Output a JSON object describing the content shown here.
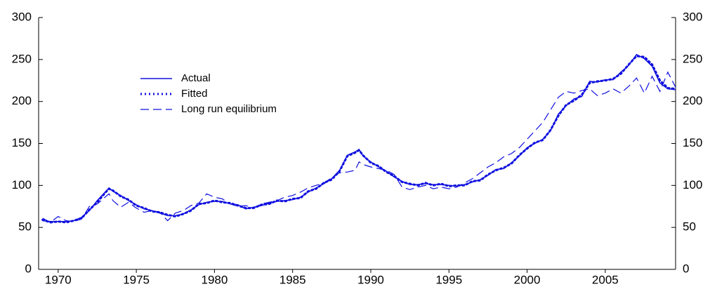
{
  "chart_data": {
    "type": "line",
    "x": [
      1969,
      1969.5,
      1970,
      1970.5,
      1971,
      1971.5,
      1972,
      1972.5,
      1973,
      1973.25,
      1973.5,
      1974,
      1974.5,
      1975,
      1975.5,
      1976,
      1976.5,
      1977,
      1977.5,
      1978,
      1978.5,
      1979,
      1979.5,
      1980,
      1980.5,
      1981,
      1981.5,
      1982,
      1982.5,
      1983,
      1983.5,
      1984,
      1984.5,
      1985,
      1985.5,
      1986,
      1986.5,
      1987,
      1987.5,
      1988,
      1988.5,
      1989,
      1989.25,
      1989.5,
      1990,
      1990.5,
      1991,
      1991.5,
      1992,
      1992.5,
      1993,
      1993.5,
      1994,
      1994.5,
      1995,
      1995.5,
      1996,
      1996.5,
      1997,
      1997.5,
      1998,
      1998.5,
      1999,
      1999.5,
      2000,
      2000.5,
      2001,
      2001.5,
      2002,
      2002.5,
      2003,
      2003.5,
      2004,
      2004.5,
      2005,
      2005.5,
      2006,
      2006.5,
      2007,
      2007.5,
      2008,
      2008.5,
      2009,
      2009.5
    ],
    "series": [
      {
        "name": "Actual",
        "color": "#1010e0",
        "dash": "solid",
        "values": [
          58,
          57,
          57,
          57,
          58,
          62,
          70,
          82,
          92,
          97,
          93,
          88,
          82,
          77,
          72,
          70,
          67,
          64,
          64,
          66,
          71,
          77,
          80,
          81,
          81,
          78,
          77,
          72,
          74,
          76,
          79,
          81,
          82,
          83,
          86,
          92,
          97,
          102,
          108,
          118,
          136,
          140,
          143,
          135,
          128,
          122,
          117,
          110,
          105,
          101,
          101,
          102,
          101,
          101,
          100,
          99,
          101,
          104,
          107,
          112,
          119,
          120,
          127,
          135,
          145,
          150,
          155,
          165,
          185,
          195,
          203,
          206,
          224,
          223,
          226,
          226,
          235,
          243,
          256,
          251,
          242,
          222,
          215,
          214
        ]
      },
      {
        "name": "Fitted",
        "color": "#1010e0",
        "dash": "dotted",
        "values": [
          59,
          56,
          57,
          56,
          58,
          61,
          71,
          80,
          91,
          96,
          94,
          87,
          83,
          76,
          73,
          69,
          68,
          65,
          63,
          66,
          70,
          78,
          79,
          82,
          80,
          79,
          76,
          73,
          73,
          77,
          78,
          82,
          81,
          84,
          85,
          93,
          96,
          103,
          107,
          117,
          135,
          139,
          142,
          136,
          127,
          123,
          116,
          111,
          104,
          102,
          100,
          103,
          100,
          102,
          99,
          100,
          100,
          105,
          106,
          113,
          118,
          121,
          126,
          136,
          144,
          151,
          154,
          166,
          183,
          196,
          201,
          208,
          222,
          224,
          225,
          227,
          233,
          244,
          254,
          253,
          244,
          225,
          216,
          215
        ]
      },
      {
        "name": "Long run equilibrium",
        "color": "#1010e0",
        "dash": "dashed",
        "values": [
          61,
          56,
          63,
          58,
          57,
          60,
          75,
          78,
          86,
          90,
          82,
          74,
          80,
          73,
          68,
          70,
          68,
          58,
          67,
          70,
          76,
          79,
          90,
          86,
          84,
          78,
          75,
          76,
          73,
          78,
          80,
          82,
          86,
          88,
          92,
          97,
          100,
          103,
          109,
          115,
          116,
          118,
          128,
          125,
          122,
          120,
          118,
          113,
          98,
          95,
          98,
          100,
          96,
          98,
          96,
          98,
          103,
          108,
          115,
          122,
          127,
          134,
          138,
          145,
          155,
          165,
          175,
          190,
          205,
          212,
          210,
          213,
          215,
          207,
          210,
          215,
          210,
          218,
          228,
          210,
          230,
          212,
          235,
          217
        ]
      }
    ],
    "xlim": [
      1968.75,
      2009.5
    ],
    "xticks": [
      1970,
      1975,
      1980,
      1985,
      1990,
      1995,
      2000,
      2005
    ],
    "ylim": [
      0,
      300
    ],
    "yticks": [
      0,
      50,
      100,
      150,
      200,
      250,
      300
    ],
    "y2lim": [
      0,
      300
    ],
    "y2ticks": [
      0,
      50,
      100,
      150,
      200,
      250,
      300
    ]
  }
}
